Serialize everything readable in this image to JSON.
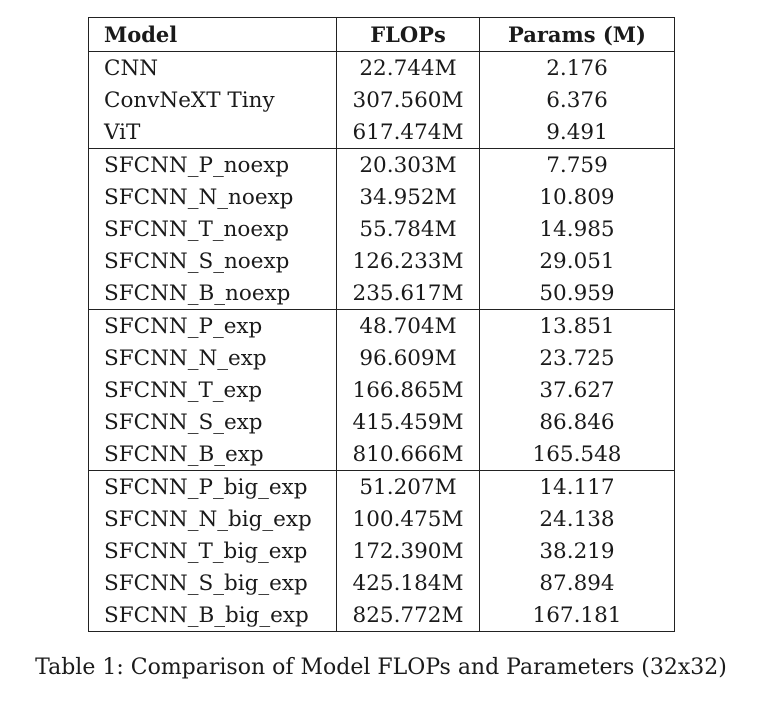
{
  "table": {
    "headers": [
      "Model",
      "FLOPs",
      "Params (M)"
    ],
    "groups": [
      [
        {
          "model": "CNN",
          "flops": "22.744M",
          "params": "2.176"
        },
        {
          "model": "ConvNeXT Tiny",
          "flops": "307.560M",
          "params": "6.376"
        },
        {
          "model": "ViT",
          "flops": "617.474M",
          "params": "9.491"
        }
      ],
      [
        {
          "model": "SFCNN_P_noexp",
          "flops": "20.303M",
          "params": "7.759"
        },
        {
          "model": "SFCNN_N_noexp",
          "flops": "34.952M",
          "params": "10.809"
        },
        {
          "model": "SFCNN_T_noexp",
          "flops": "55.784M",
          "params": "14.985"
        },
        {
          "model": "SFCNN_S_noexp",
          "flops": "126.233M",
          "params": "29.051"
        },
        {
          "model": "SFCNN_B_noexp",
          "flops": "235.617M",
          "params": "50.959"
        }
      ],
      [
        {
          "model": "SFCNN_P_exp",
          "flops": "48.704M",
          "params": "13.851"
        },
        {
          "model": "SFCNN_N_exp",
          "flops": "96.609M",
          "params": "23.725"
        },
        {
          "model": "SFCNN_T_exp",
          "flops": "166.865M",
          "params": "37.627"
        },
        {
          "model": "SFCNN_S_exp",
          "flops": "415.459M",
          "params": "86.846"
        },
        {
          "model": "SFCNN_B_exp",
          "flops": "810.666M",
          "params": "165.548"
        }
      ],
      [
        {
          "model": "SFCNN_P_big_exp",
          "flops": "51.207M",
          "params": "14.117"
        },
        {
          "model": "SFCNN_N_big_exp",
          "flops": "100.475M",
          "params": "24.138"
        },
        {
          "model": "SFCNN_T_big_exp",
          "flops": "172.390M",
          "params": "38.219"
        },
        {
          "model": "SFCNN_S_big_exp",
          "flops": "425.184M",
          "params": "87.894"
        },
        {
          "model": "SFCNN_B_big_exp",
          "flops": "825.772M",
          "params": "167.181"
        }
      ]
    ]
  },
  "caption": "Table 1: Comparison of Model FLOPs and Parameters (32x32)"
}
